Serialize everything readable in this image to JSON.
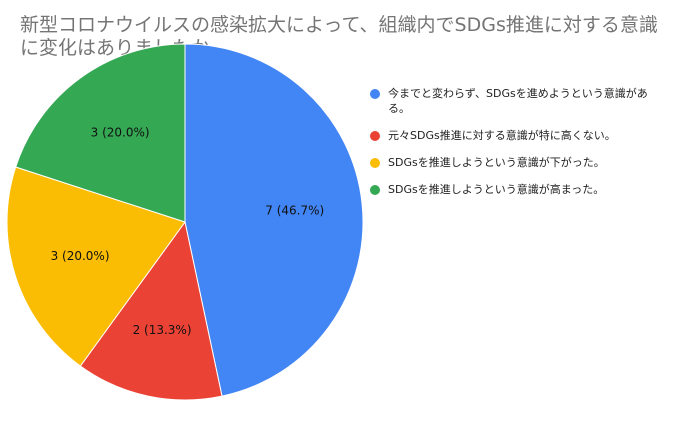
{
  "chart_data": {
    "type": "pie",
    "title_lines": [
      "新型コロナウイルスの感染拡大によって、組織内でSDGs推進に対する意識",
      "に変化はありましたか。"
    ],
    "categories": [
      "今までと変わらず、SDGsを進めようという意識がある。",
      "元々SDGs推進に対する意識が特に高くない。",
      "SDGsを推進しようという意識が下がった。",
      "SDGsを推進しようという意識が高まった。"
    ],
    "values": [
      7,
      2,
      3,
      3
    ],
    "slice_labels": [
      "7 (46.7%)",
      "2 (13.3%)",
      "3 (20.0%)",
      "3 (20.0%)"
    ],
    "colors": [
      "#4285f4",
      "#ea4335",
      "#fbbc04",
      "#34a853"
    ],
    "legend_position": "right"
  }
}
